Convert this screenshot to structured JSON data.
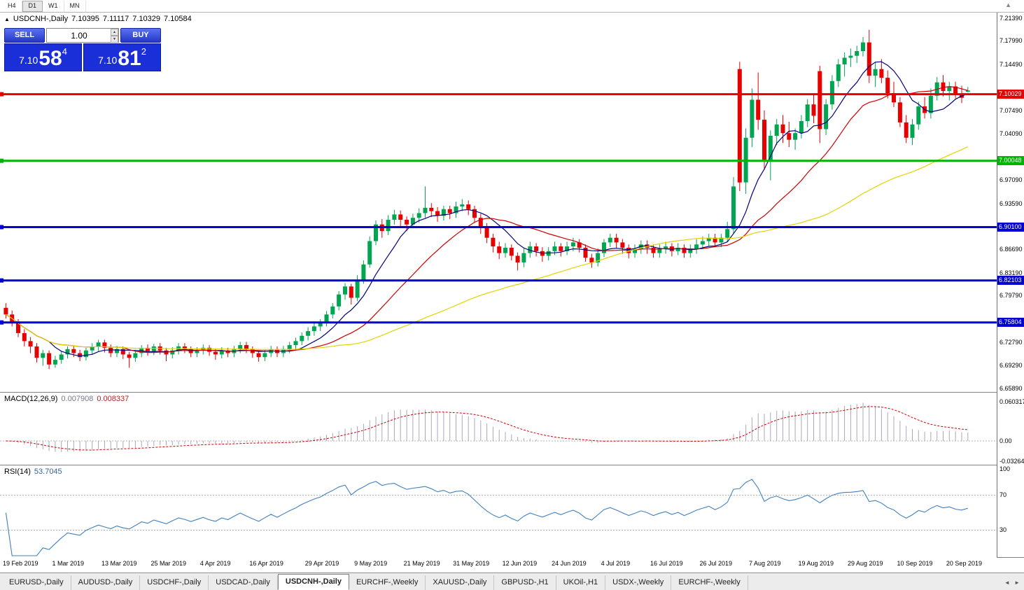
{
  "toolbar": {
    "periods": [
      "H4",
      "D1",
      "W1",
      "MN"
    ],
    "active_period": "D1"
  },
  "icons": {
    "collapse": "▲",
    "spin_up": "▲",
    "spin_down": "▼",
    "scroll_up": "▲",
    "tab_prev": "◄",
    "tab_next": "►"
  },
  "chart_header": {
    "symbol": "USDCNH-,Daily",
    "open": "7.10395",
    "high": "7.11117",
    "low": "7.10329",
    "close": "7.10584"
  },
  "one_click": {
    "sell_label": "SELL",
    "buy_label": "BUY",
    "volume": "1.00",
    "sell_price_small": "7.10",
    "sell_price_big": "58",
    "sell_price_pip": "4",
    "buy_price_small": "7.10",
    "buy_price_big": "81",
    "buy_price_pip": "2"
  },
  "chart_data": {
    "type": "candlestick",
    "symbol": "USDCNH",
    "timeframe": "Daily",
    "price_range": {
      "top": 7.2185,
      "bottom": 6.658
    },
    "price_axis_labels": [
      "7.21390",
      "7.17990",
      "7.14490",
      "7.07490",
      "7.04090",
      "6.97090",
      "6.93590",
      "6.86690",
      "6.83190",
      "6.79790",
      "6.72790",
      "6.69290",
      "6.65890"
    ],
    "hlines": [
      {
        "price": 7.10029,
        "color": "#e60000",
        "label": "7.10029"
      },
      {
        "price": 7.00048,
        "color": "#00b400",
        "label": "7.00048"
      },
      {
        "price": 6.901,
        "color": "#0000d2",
        "label": "6.90100"
      },
      {
        "price": 6.82103,
        "color": "#0000d2",
        "label": "6.82103"
      },
      {
        "price": 6.75804,
        "color": "#0000d2",
        "label": "6.75804"
      }
    ],
    "moving_averages": [
      {
        "period": 8,
        "color": "#000080"
      },
      {
        "period": 20,
        "color": "#cc0000"
      },
      {
        "period": 55,
        "color": "#e3d400"
      }
    ],
    "colors": {
      "bull": "#00a551",
      "bear": "#e60000",
      "macd_hist": "#a8a8bc",
      "macd_signal": "#cc0000",
      "rsi_line": "#4080c0",
      "level_dash": "#b4b4b4"
    },
    "candles": [
      [
        6.78,
        6.787,
        6.764,
        6.77
      ],
      [
        6.77,
        6.776,
        6.752,
        6.758
      ],
      [
        6.758,
        6.763,
        6.736,
        6.742
      ],
      [
        6.742,
        6.748,
        6.722,
        6.73
      ],
      [
        6.73,
        6.736,
        6.712,
        6.722
      ],
      [
        6.722,
        6.727,
        6.698,
        6.705
      ],
      [
        6.705,
        6.717,
        6.693,
        6.712
      ],
      [
        6.712,
        6.716,
        6.688,
        6.695
      ],
      [
        6.695,
        6.708,
        6.69,
        6.702
      ],
      [
        6.702,
        6.714,
        6.696,
        6.71
      ],
      [
        6.71,
        6.722,
        6.704,
        6.718
      ],
      [
        6.718,
        6.723,
        6.706,
        6.712
      ],
      [
        6.712,
        6.717,
        6.7,
        6.706
      ],
      [
        6.706,
        6.72,
        6.701,
        6.716
      ],
      [
        6.716,
        6.727,
        6.71,
        6.722
      ],
      [
        6.722,
        6.732,
        6.715,
        6.728
      ],
      [
        6.728,
        6.732,
        6.713,
        6.72
      ],
      [
        6.72,
        6.725,
        6.706,
        6.712
      ],
      [
        6.712,
        6.723,
        6.706,
        6.718
      ],
      [
        6.718,
        6.722,
        6.703,
        6.71
      ],
      [
        6.71,
        6.714,
        6.69,
        6.705
      ],
      [
        6.705,
        6.717,
        6.699,
        6.712
      ],
      [
        6.712,
        6.724,
        6.706,
        6.72
      ],
      [
        6.72,
        6.725,
        6.708,
        6.715
      ],
      [
        6.715,
        6.726,
        6.709,
        6.722
      ],
      [
        6.722,
        6.727,
        6.71,
        6.716
      ],
      [
        6.716,
        6.72,
        6.7,
        6.71
      ],
      [
        6.71,
        6.721,
        6.704,
        6.716
      ],
      [
        6.716,
        6.727,
        6.71,
        6.722
      ],
      [
        6.722,
        6.727,
        6.712,
        6.718
      ],
      [
        6.718,
        6.722,
        6.706,
        6.712
      ],
      [
        6.712,
        6.721,
        6.706,
        6.716
      ],
      [
        6.716,
        6.725,
        6.71,
        6.72
      ],
      [
        6.72,
        6.724,
        6.708,
        6.714
      ],
      [
        6.714,
        6.719,
        6.702,
        6.71
      ],
      [
        6.71,
        6.721,
        6.704,
        6.716
      ],
      [
        6.716,
        6.72,
        6.706,
        6.712
      ],
      [
        6.712,
        6.723,
        6.706,
        6.718
      ],
      [
        6.718,
        6.729,
        6.712,
        6.724
      ],
      [
        6.724,
        6.729,
        6.712,
        6.718
      ],
      [
        6.718,
        6.722,
        6.705,
        6.712
      ],
      [
        6.712,
        6.716,
        6.699,
        6.706
      ],
      [
        6.706,
        6.717,
        6.7,
        6.712
      ],
      [
        6.712,
        6.723,
        6.706,
        6.718
      ],
      [
        6.718,
        6.722,
        6.706,
        6.712
      ],
      [
        6.712,
        6.723,
        6.706,
        6.718
      ],
      [
        6.718,
        6.729,
        6.712,
        6.724
      ],
      [
        6.724,
        6.735,
        6.718,
        6.73
      ],
      [
        6.73,
        6.743,
        6.724,
        6.738
      ],
      [
        6.738,
        6.751,
        6.731,
        6.745
      ],
      [
        6.745,
        6.757,
        6.738,
        6.752
      ],
      [
        6.752,
        6.763,
        6.745,
        6.758
      ],
      [
        6.758,
        6.775,
        6.752,
        6.77
      ],
      [
        6.77,
        6.787,
        6.764,
        6.782
      ],
      [
        6.782,
        6.805,
        6.776,
        6.8
      ],
      [
        6.8,
        6.817,
        6.792,
        6.812
      ],
      [
        6.812,
        6.816,
        6.785,
        6.795
      ],
      [
        6.795,
        6.829,
        6.79,
        6.822
      ],
      [
        6.822,
        6.851,
        6.816,
        6.845
      ],
      [
        6.845,
        6.887,
        6.84,
        6.88
      ],
      [
        6.88,
        6.911,
        6.874,
        6.905
      ],
      [
        6.905,
        6.913,
        6.885,
        6.895
      ],
      [
        6.895,
        6.919,
        6.889,
        6.912
      ],
      [
        6.912,
        6.927,
        6.905,
        6.92
      ],
      [
        6.92,
        6.926,
        6.902,
        6.912
      ],
      [
        6.912,
        6.917,
        6.895,
        6.905
      ],
      [
        6.905,
        6.921,
        6.899,
        6.915
      ],
      [
        6.915,
        6.929,
        6.908,
        6.922
      ],
      [
        6.922,
        6.962,
        6.915,
        6.93
      ],
      [
        6.93,
        6.937,
        6.916,
        6.925
      ],
      [
        6.925,
        6.931,
        6.909,
        6.918
      ],
      [
        6.918,
        6.933,
        6.911,
        6.928
      ],
      [
        6.928,
        6.933,
        6.913,
        6.922
      ],
      [
        6.922,
        6.939,
        6.915,
        6.932
      ],
      [
        6.932,
        6.943,
        6.925,
        6.935
      ],
      [
        6.935,
        6.941,
        6.919,
        6.928
      ],
      [
        6.928,
        6.933,
        6.907,
        6.915
      ],
      [
        6.915,
        6.921,
        6.891,
        6.9
      ],
      [
        6.9,
        6.907,
        6.877,
        6.885
      ],
      [
        6.885,
        6.891,
        6.863,
        6.872
      ],
      [
        6.872,
        6.879,
        6.853,
        6.862
      ],
      [
        6.862,
        6.877,
        6.855,
        6.87
      ],
      [
        6.87,
        6.875,
        6.851,
        6.858
      ],
      [
        6.858,
        6.863,
        6.836,
        6.848
      ],
      [
        6.848,
        6.869,
        6.841,
        6.862
      ],
      [
        6.862,
        6.879,
        6.855,
        6.872
      ],
      [
        6.872,
        6.877,
        6.857,
        6.865
      ],
      [
        6.865,
        6.871,
        6.849,
        6.858
      ],
      [
        6.858,
        6.871,
        6.851,
        6.865
      ],
      [
        6.865,
        6.879,
        6.859,
        6.872
      ],
      [
        6.872,
        6.877,
        6.857,
        6.865
      ],
      [
        6.865,
        6.879,
        6.859,
        6.872
      ],
      [
        6.872,
        6.885,
        6.865,
        6.878
      ],
      [
        6.878,
        6.883,
        6.863,
        6.87
      ],
      [
        6.87,
        6.875,
        6.849,
        6.855
      ],
      [
        6.855,
        6.861,
        6.84,
        6.848
      ],
      [
        6.848,
        6.869,
        6.842,
        6.862
      ],
      [
        6.862,
        6.883,
        6.856,
        6.878
      ],
      [
        6.878,
        6.891,
        6.871,
        6.885
      ],
      [
        6.885,
        6.891,
        6.869,
        6.878
      ],
      [
        6.878,
        6.883,
        6.861,
        6.87
      ],
      [
        6.87,
        6.875,
        6.854,
        6.862
      ],
      [
        6.862,
        6.875,
        6.855,
        6.868
      ],
      [
        6.868,
        6.881,
        6.861,
        6.875
      ],
      [
        6.875,
        6.881,
        6.861,
        6.87
      ],
      [
        6.87,
        6.875,
        6.855,
        6.862
      ],
      [
        6.862,
        6.875,
        6.855,
        6.868
      ],
      [
        6.868,
        6.879,
        6.861,
        6.872
      ],
      [
        6.872,
        6.877,
        6.857,
        6.865
      ],
      [
        6.865,
        6.877,
        6.859,
        6.87
      ],
      [
        6.87,
        6.875,
        6.855,
        6.862
      ],
      [
        6.862,
        6.875,
        6.855,
        6.868
      ],
      [
        6.868,
        6.883,
        6.861,
        6.875
      ],
      [
        6.875,
        6.887,
        6.869,
        6.88
      ],
      [
        6.88,
        6.891,
        6.873,
        6.885
      ],
      [
        6.885,
        6.891,
        6.871,
        6.878
      ],
      [
        6.878,
        6.891,
        6.871,
        6.885
      ],
      [
        6.885,
        6.909,
        6.879,
        6.898
      ],
      [
        6.898,
        6.976,
        6.891,
        6.962
      ],
      [
        7.138,
        7.149,
        6.955,
        6.968
      ],
      [
        6.968,
        7.049,
        6.951,
        7.035
      ],
      [
        7.035,
        7.109,
        7.021,
        7.092
      ],
      [
        7.092,
        7.133,
        7.047,
        7.062
      ],
      [
        7.062,
        7.076,
        6.987,
        7.002
      ],
      [
        7.002,
        7.046,
        6.971,
        7.038
      ],
      [
        7.038,
        7.063,
        7.024,
        7.055
      ],
      [
        7.055,
        7.069,
        7.027,
        7.042
      ],
      [
        7.042,
        7.059,
        7.021,
        7.032
      ],
      [
        7.032,
        7.049,
        7.017,
        7.042
      ],
      [
        7.042,
        7.069,
        7.034,
        7.06
      ],
      [
        7.06,
        7.093,
        7.051,
        7.085
      ],
      [
        7.085,
        7.099,
        7.057,
        7.068
      ],
      [
        7.135,
        7.143,
        7.027,
        7.048
      ],
      [
        7.048,
        7.093,
        7.039,
        7.085
      ],
      [
        7.085,
        7.129,
        7.077,
        7.12
      ],
      [
        7.12,
        7.153,
        7.111,
        7.145
      ],
      [
        7.145,
        7.163,
        7.127,
        7.155
      ],
      [
        7.155,
        7.169,
        7.141,
        7.158
      ],
      [
        7.158,
        7.173,
        7.147,
        7.165
      ],
      [
        7.165,
        7.186,
        7.157,
        7.178
      ],
      [
        7.178,
        7.197,
        7.117,
        7.128
      ],
      [
        7.128,
        7.149,
        7.111,
        7.138
      ],
      [
        7.138,
        7.153,
        7.117,
        7.125
      ],
      [
        7.125,
        7.136,
        7.094,
        7.102
      ],
      [
        7.102,
        7.119,
        7.081,
        7.088
      ],
      [
        7.088,
        7.096,
        7.051,
        7.058
      ],
      [
        7.058,
        7.069,
        7.027,
        7.035
      ],
      [
        7.035,
        7.063,
        7.024,
        7.055
      ],
      [
        7.055,
        7.089,
        7.047,
        7.082
      ],
      [
        7.082,
        7.096,
        7.064,
        7.072
      ],
      [
        7.072,
        7.109,
        7.064,
        7.098
      ],
      [
        7.098,
        7.126,
        7.091,
        7.118
      ],
      [
        7.118,
        7.129,
        7.097,
        7.105
      ],
      [
        7.105,
        7.119,
        7.091,
        7.112
      ],
      [
        7.112,
        7.119,
        7.094,
        7.1
      ],
      [
        7.1,
        7.113,
        7.087,
        7.095
      ],
      [
        7.10395,
        7.11117,
        7.10329,
        7.10584
      ]
    ],
    "x_labels": [
      {
        "text": "19 Feb 2019",
        "index": 0
      },
      {
        "text": "1 Mar 2019",
        "index": 8
      },
      {
        "text": "13 Mar 2019",
        "index": 16
      },
      {
        "text": "25 Mar 2019",
        "index": 24
      },
      {
        "text": "4 Apr 2019",
        "index": 32
      },
      {
        "text": "16 Apr 2019",
        "index": 40
      },
      {
        "text": "29 Apr 2019",
        "index": 49
      },
      {
        "text": "9 May 2019",
        "index": 57
      },
      {
        "text": "21 May 2019",
        "index": 65
      },
      {
        "text": "31 May 2019",
        "index": 73
      },
      {
        "text": "12 Jun 2019",
        "index": 81
      },
      {
        "text": "24 Jun 2019",
        "index": 89
      },
      {
        "text": "4 Jul 2019",
        "index": 97
      },
      {
        "text": "16 Jul 2019",
        "index": 105
      },
      {
        "text": "26 Jul 2019",
        "index": 113
      },
      {
        "text": "7 Aug 2019",
        "index": 121
      },
      {
        "text": "19 Aug 2019",
        "index": 129
      },
      {
        "text": "29 Aug 2019",
        "index": 137
      },
      {
        "text": "10 Sep 2019",
        "index": 145
      },
      {
        "text": "20 Sep 2019",
        "index": 153
      }
    ],
    "macd": {
      "label": "MACD(12,26,9)",
      "value_main": "0.007908",
      "value_signal": "0.008337",
      "params": [
        12,
        26,
        9
      ],
      "axis_labels": [
        "0.060317",
        "0.00",
        "-0.032648"
      ]
    },
    "rsi": {
      "label": "RSI(14)",
      "value": "53.7045",
      "period": 14,
      "levels": [
        70,
        30
      ],
      "axis_labels": [
        "100",
        "70",
        "30"
      ]
    }
  },
  "bottom_tabs": {
    "tabs": [
      {
        "label": "EURUSD-,Daily",
        "active": false
      },
      {
        "label": "AUDUSD-,Daily",
        "active": false
      },
      {
        "label": "USDCHF-,Daily",
        "active": false
      },
      {
        "label": "USDCAD-,Daily",
        "active": false
      },
      {
        "label": "USDCNH-,Daily",
        "active": true
      },
      {
        "label": "EURCHF-,Weekly",
        "active": false
      },
      {
        "label": "XAUUSD-,Daily",
        "active": false
      },
      {
        "label": "GBPUSD-,H1",
        "active": false
      },
      {
        "label": "UKOil-,H1",
        "active": false
      },
      {
        "label": "USDX-,Weekly",
        "active": false
      },
      {
        "label": "EURCHF-,Weekly",
        "active": false
      }
    ]
  }
}
